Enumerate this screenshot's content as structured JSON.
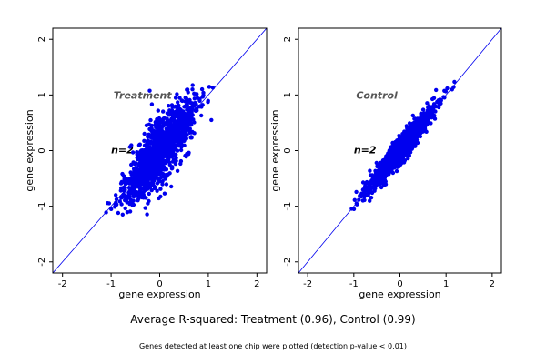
{
  "chart_data": [
    {
      "type": "scatter",
      "title": "Treatment",
      "annotation": "n=2",
      "xlabel": "gene expression",
      "ylabel": "gene expression",
      "xlim": [
        -2.2,
        2.2
      ],
      "ylim": [
        -2.2,
        2.2
      ],
      "xticks": [
        -2,
        -1,
        0,
        1,
        2
      ],
      "yticks": [
        -2,
        -1,
        0,
        1,
        2
      ],
      "reference_line": "y = x",
      "point_color": "#0000ee",
      "spread": 0.22,
      "x_range": [
        -1.15,
        1.2
      ],
      "grid": false
    },
    {
      "type": "scatter",
      "title": "Control",
      "annotation": "n=2",
      "xlabel": "gene expression",
      "ylabel": "gene expression",
      "xlim": [
        -2.2,
        2.2
      ],
      "ylim": [
        -2.2,
        2.2
      ],
      "xticks": [
        -2,
        -1,
        0,
        1,
        2
      ],
      "yticks": [
        -2,
        -1,
        0,
        1,
        2
      ],
      "reference_line": "y = x",
      "point_color": "#0000ee",
      "spread": 0.09,
      "x_range": [
        -1.05,
        1.2
      ],
      "grid": false
    }
  ],
  "captions": {
    "main": "Average R-squared: Treatment (0.96), Control (0.99)",
    "sub": "Genes detected at least one chip were plotted (detection p-value < 0.01)"
  }
}
